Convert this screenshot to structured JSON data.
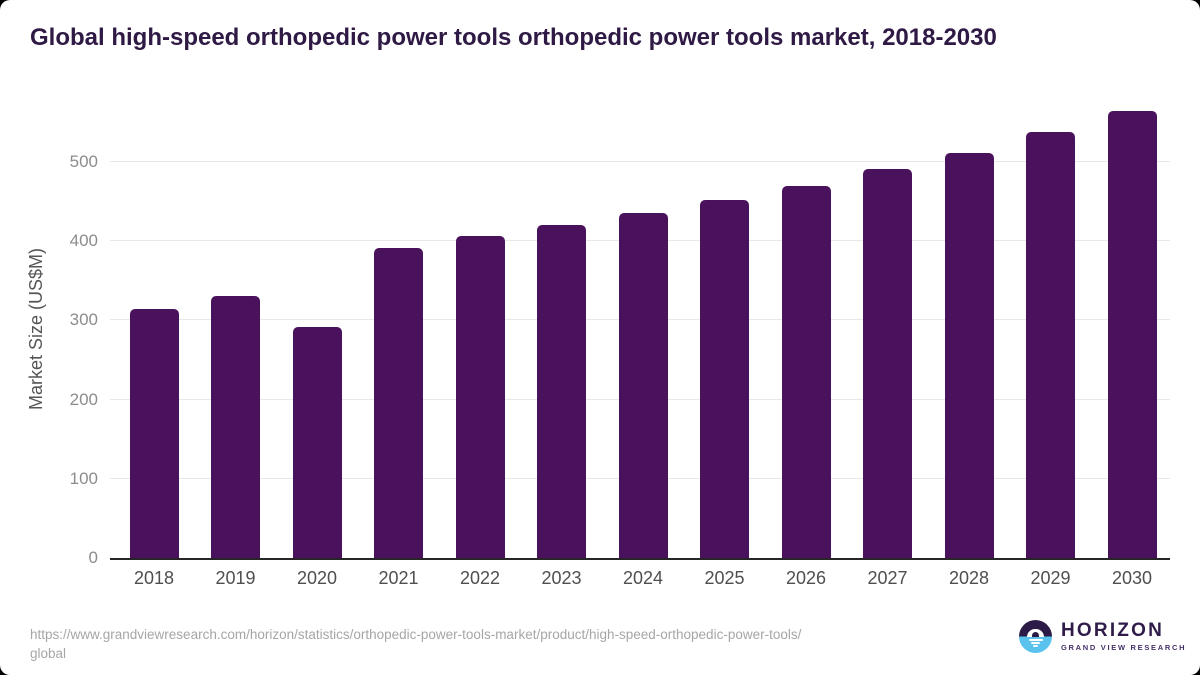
{
  "header": {
    "title": "Global high-speed orthopedic power tools orthopedic power tools market, 2018-2030"
  },
  "chart_data": {
    "type": "bar",
    "title": "Global high-speed orthopedic power tools orthopedic power tools market, 2018-2030",
    "categories": [
      "2018",
      "2019",
      "2020",
      "2021",
      "2022",
      "2023",
      "2024",
      "2025",
      "2026",
      "2027",
      "2028",
      "2029",
      "2030"
    ],
    "values": [
      315,
      331,
      292,
      391,
      406,
      420,
      436,
      452,
      470,
      491,
      512,
      538,
      564
    ],
    "xlabel": "",
    "ylabel": "Market Size (US$M)",
    "yticks": [
      0,
      100,
      200,
      300,
      400,
      500
    ],
    "ylim": [
      0,
      580
    ],
    "grid": true,
    "legend": false,
    "bar_color": "#4a115c"
  },
  "footer": {
    "source_line1": "https://www.grandviewresearch.com/horizon/statistics/orthopedic-power-tools-market/product/high-speed-orthopedic-power-tools/",
    "source_line2": "global",
    "logo": {
      "name": "HORIZON",
      "subtitle": "GRAND VIEW RESEARCH"
    }
  },
  "colors": {
    "bar": "#4a115c",
    "title_text": "#2f1a45",
    "grid": "#e8e8e8",
    "axis": "#262626",
    "y_tick_text": "#8c8c8c",
    "x_tick_text": "#4f4f4f",
    "logo_purple": "#2d1b47",
    "logo_blue": "#59c3ee"
  }
}
